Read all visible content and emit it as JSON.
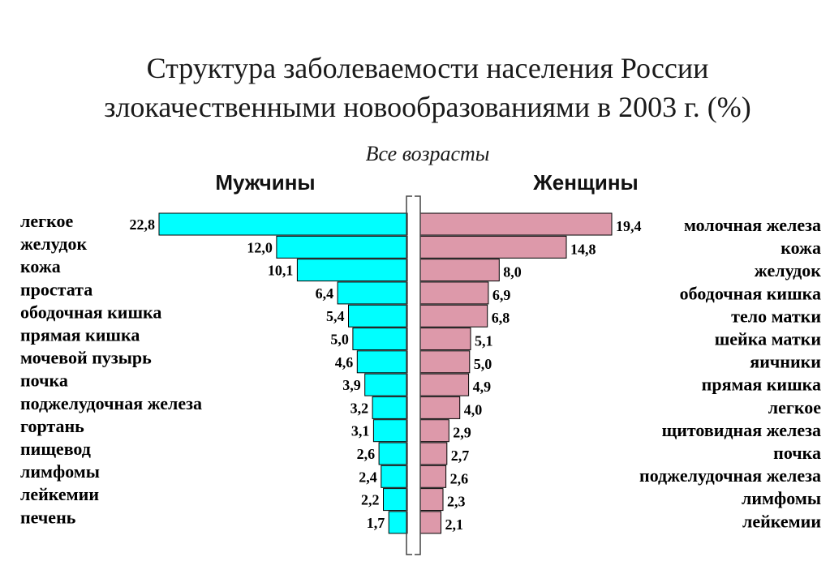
{
  "chart_data": {
    "type": "bar",
    "orientation": "horizontal",
    "layout": "back-to-back",
    "title_line1": "Структура заболеваемости населения России",
    "title_line2": "злокачественными новообразованиями в 2003 г. (%)",
    "subtitle": "Все возрасты",
    "colors": {
      "men": "#00ffff",
      "women": "#dd99aa",
      "outline": "#000000"
    },
    "men": {
      "name": "Мужчины",
      "categories": [
        "легкое",
        "желудок",
        "кожа",
        "простата",
        "ободочная кишка",
        "прямая кишка",
        "мочевой пузырь",
        "почка",
        "поджелудочная железа",
        "гортань",
        "пищевод",
        "лимфомы",
        "лейкемии",
        "печень"
      ],
      "values": [
        22.8,
        12.0,
        10.1,
        6.4,
        5.4,
        5.0,
        4.6,
        3.9,
        3.2,
        3.1,
        2.6,
        2.4,
        2.2,
        1.7
      ],
      "labels": [
        "22,8",
        "12,0",
        "10,1",
        "6,4",
        "5,4",
        "5,0",
        "4,6",
        "3,9",
        "3,2",
        "3,1",
        "2,6",
        "2,4",
        "2,2",
        "1,7"
      ]
    },
    "women": {
      "name": "Женщины",
      "categories": [
        "молочная железа",
        "кожа",
        "желудок",
        "ободочная кишка",
        "тело матки",
        "шейка матки",
        "яичники",
        "прямая кишка",
        "легкое",
        "щитовидная железа",
        "почка",
        "поджелудочная железа",
        "лимфомы",
        "лейкемии"
      ],
      "values": [
        19.4,
        14.8,
        8.0,
        6.9,
        6.8,
        5.1,
        5.0,
        4.9,
        4.0,
        2.9,
        2.7,
        2.6,
        2.3,
        2.1
      ],
      "labels": [
        "19,4",
        "14,8",
        "8,0",
        "6,9",
        "6,8",
        "5,1",
        "5,0",
        "4,9",
        "4,0",
        "2,9",
        "2,7",
        "2,6",
        "2,3",
        "2,1"
      ]
    }
  }
}
